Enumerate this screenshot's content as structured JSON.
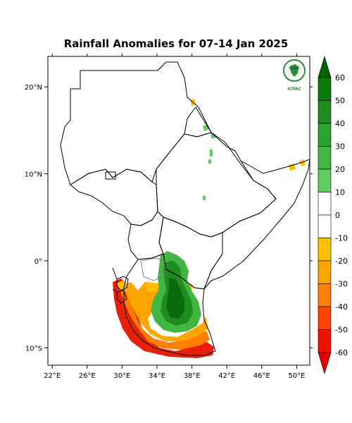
{
  "title": "Rainfall Anomalies for 07-14 Jan 2025",
  "axes": {
    "x_ticks": [
      {
        "value": 22,
        "label": "22°E"
      },
      {
        "value": 26,
        "label": "26°E"
      },
      {
        "value": 30,
        "label": "30°E"
      },
      {
        "value": 34,
        "label": "34°E"
      },
      {
        "value": 38,
        "label": "38°E"
      },
      {
        "value": 42,
        "label": "42°E"
      },
      {
        "value": 46,
        "label": "46°E"
      },
      {
        "value": 50,
        "label": "50°E"
      }
    ],
    "y_ticks": [
      {
        "value": 20,
        "label": "20°N"
      },
      {
        "value": 10,
        "label": "10°N"
      },
      {
        "value": 0,
        "label": "0°"
      },
      {
        "value": -10,
        "label": "10°S"
      }
    ],
    "lon_range": [
      21.5,
      51.5
    ],
    "lat_range": [
      -12,
      23.5
    ]
  },
  "colorbar": {
    "levels": [
      60,
      50,
      40,
      30,
      20,
      10,
      0,
      -10,
      -20,
      -30,
      -40,
      -50,
      -60
    ],
    "colors": [
      "#006400",
      "#0b7a0b",
      "#1e8c1e",
      "#2ea22e",
      "#43b543",
      "#5ecc5e",
      "#ffffff",
      "#ffffff",
      "#ffc000",
      "#ffa500",
      "#ff7f00",
      "#ff4500",
      "#ee1100",
      "#e60000"
    ]
  },
  "logo": {
    "top_text": "IGAD",
    "bottom_text": "ICPAC"
  }
}
